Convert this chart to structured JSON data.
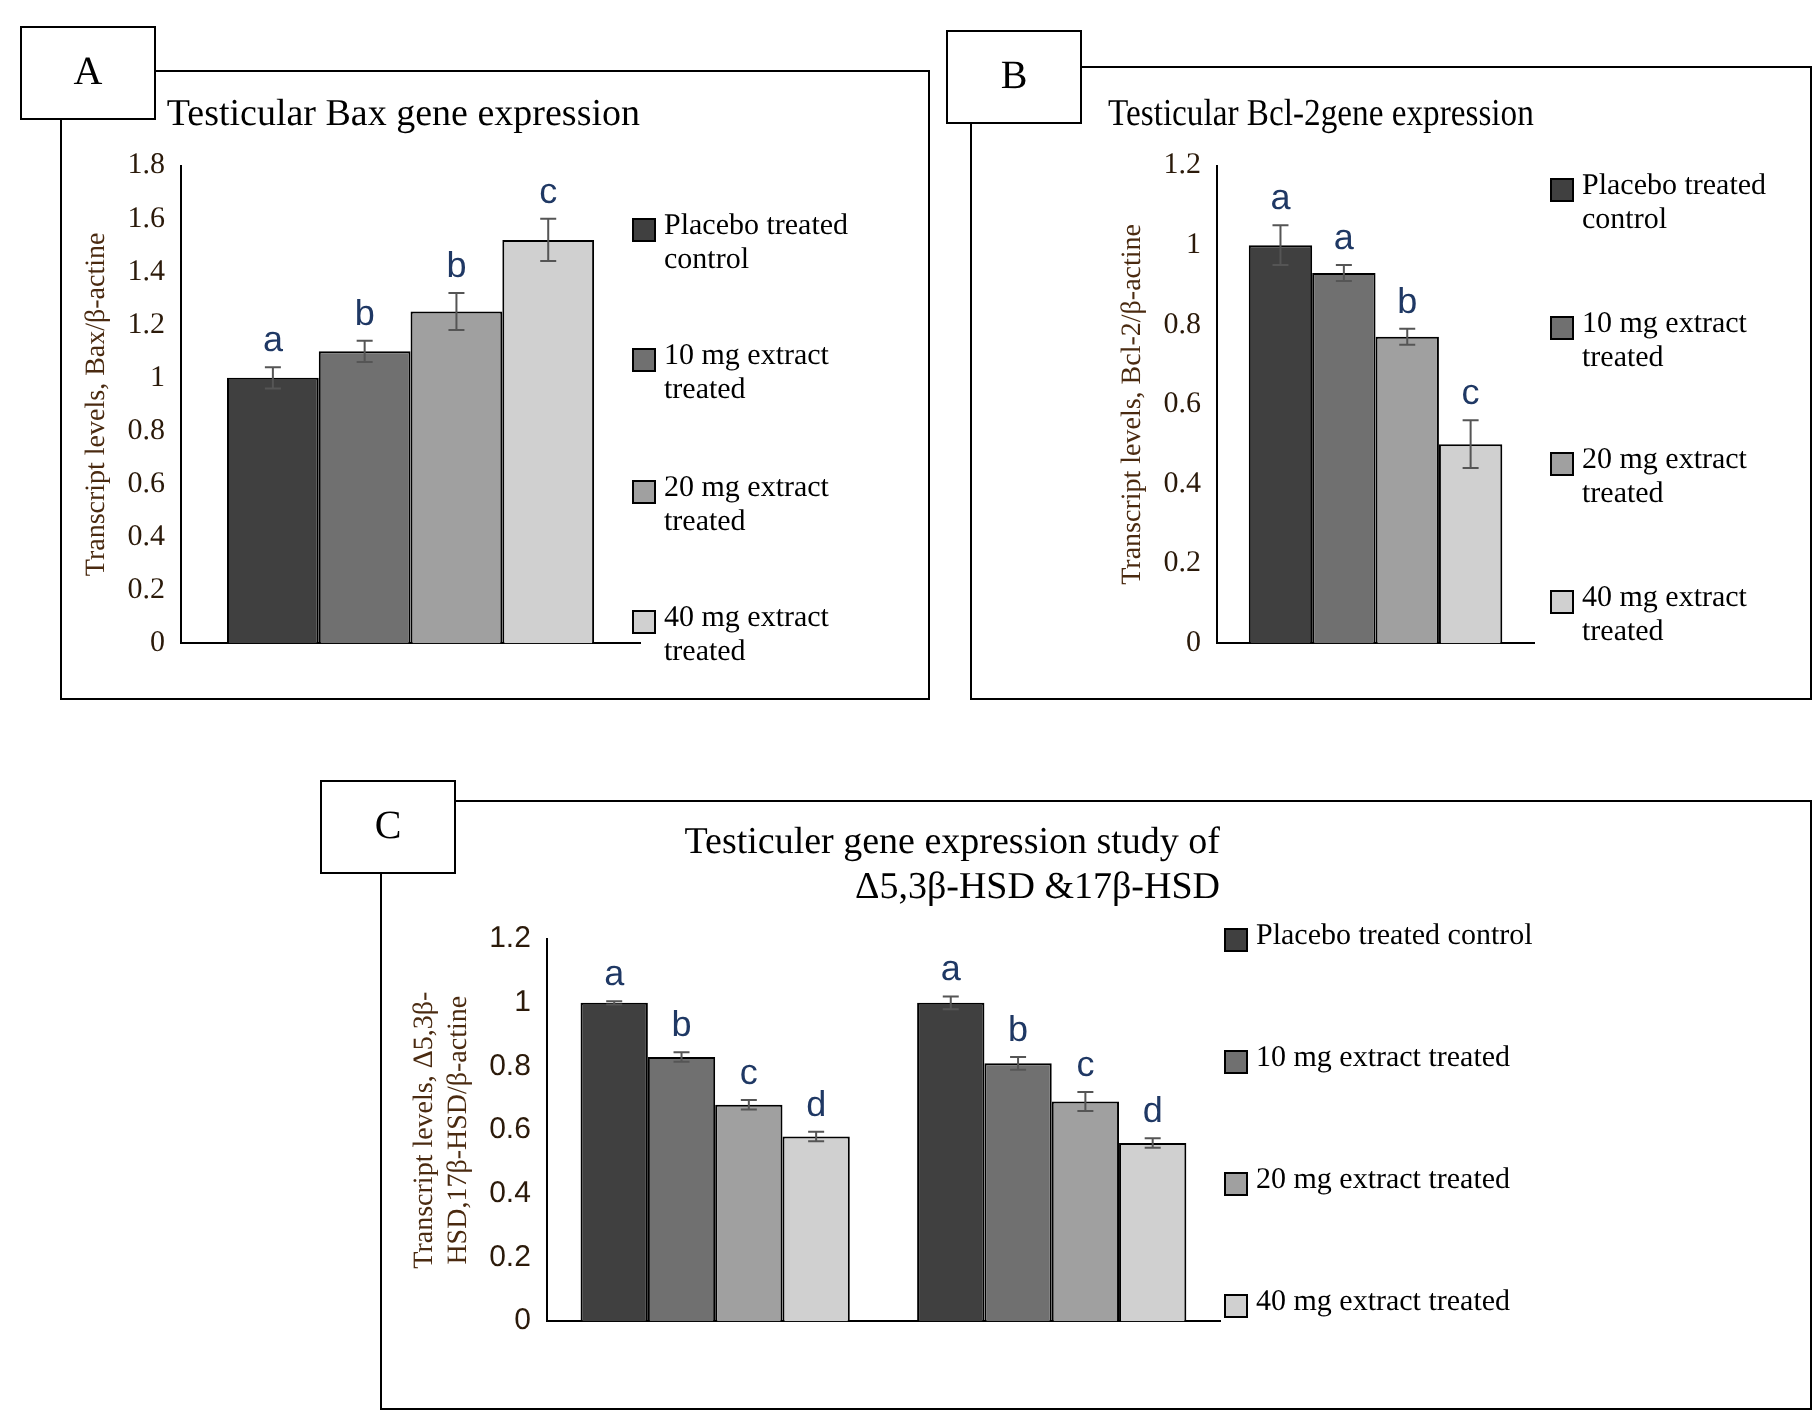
{
  "chart_data": [
    {
      "type": "bar",
      "title": "Testicular Bax gene expression",
      "ylabel": "Transcript levels, Bax/β-actine",
      "categories": [
        null
      ],
      "ylim": [
        0,
        1.8
      ],
      "yticks": [
        0,
        0.2,
        0.4,
        0.6,
        0.8,
        1,
        1.2,
        1.4,
        1.6,
        1.8
      ],
      "legend": "right",
      "annotations": [
        "A"
      ],
      "series": [
        {
          "name": "Placebo treated control",
          "color": "#404040",
          "values": [
            1.0
          ],
          "errors": [
            0.04
          ],
          "value_labels": [
            "a"
          ]
        },
        {
          "name": "10 mg extract treated",
          "color": "#707070",
          "values": [
            1.1
          ],
          "errors": [
            0.04
          ],
          "value_labels": [
            "b"
          ]
        },
        {
          "name": "20 mg extract treated",
          "color": "#a0a0a0",
          "values": [
            1.25
          ],
          "errors": [
            0.07
          ],
          "value_labels": [
            "b"
          ]
        },
        {
          "name": "40 mg extract treated",
          "color": "#d0d0d0",
          "values": [
            1.52
          ],
          "errors": [
            0.08
          ],
          "value_labels": [
            "c"
          ]
        }
      ]
    },
    {
      "type": "bar",
      "title": "Testicular Bcl-2gene expression",
      "ylabel": "Transcript levels, Bcl-2/β-actine",
      "categories": [
        null
      ],
      "ylim": [
        0,
        1.2
      ],
      "yticks": [
        0,
        0.2,
        0.4,
        0.6,
        0.8,
        1,
        1.2
      ],
      "legend": "right",
      "annotations": [
        "B"
      ],
      "series": [
        {
          "name": "Placebo treated control",
          "color": "#404040",
          "values": [
            1.0
          ],
          "errors": [
            0.05
          ],
          "value_labels": [
            "a"
          ]
        },
        {
          "name": "10 mg extract treated",
          "color": "#707070",
          "values": [
            0.93
          ],
          "errors": [
            0.02
          ],
          "value_labels": [
            "a"
          ]
        },
        {
          "name": "20 mg extract treated",
          "color": "#a0a0a0",
          "values": [
            0.77
          ],
          "errors": [
            0.02
          ],
          "value_labels": [
            "b"
          ]
        },
        {
          "name": "40 mg extract treated",
          "color": "#d0d0d0",
          "values": [
            0.5
          ],
          "errors": [
            0.06
          ],
          "value_labels": [
            "c"
          ]
        }
      ]
    },
    {
      "type": "bar",
      "title": "Testiculer gene expression study of Δ5,3β-HSD &17β-HSD",
      "ylabel": "Transcript levels, Δ5,3β-HSD,17β-HSD/β-actine",
      "categories": [
        null,
        null
      ],
      "ylim": [
        0,
        1.2
      ],
      "yticks": [
        0,
        0.2,
        0.4,
        0.6,
        0.8,
        1,
        1.2
      ],
      "legend": "right",
      "annotations": [
        "C"
      ],
      "series": [
        {
          "name": "Placebo treated control",
          "color": "#404040",
          "values": [
            1.0,
            1.0
          ],
          "errors": [
            0.005,
            0.02
          ],
          "value_labels": [
            "a",
            "a"
          ]
        },
        {
          "name": "10 mg extract treated",
          "color": "#707070",
          "values": [
            0.83,
            0.81
          ],
          "errors": [
            0.015,
            0.02
          ],
          "value_labels": [
            "b",
            "b"
          ]
        },
        {
          "name": "20 mg extract treated",
          "color": "#a0a0a0",
          "values": [
            0.68,
            0.69
          ],
          "errors": [
            0.015,
            0.03
          ],
          "value_labels": [
            "c",
            "c"
          ]
        },
        {
          "name": "40 mg extract treated",
          "color": "#d0d0d0",
          "values": [
            0.58,
            0.56
          ],
          "errors": [
            0.015,
            0.015
          ],
          "value_labels": [
            "d",
            "d"
          ]
        }
      ]
    }
  ]
}
